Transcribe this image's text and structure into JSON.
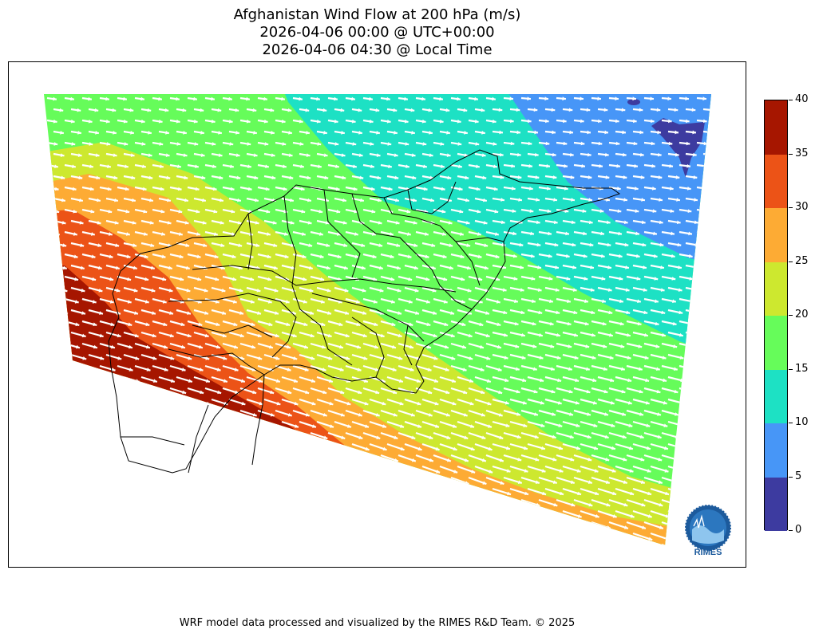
{
  "header": {
    "title_line1": "Afghanistan Wind Flow at 200 hPa (m/s)",
    "title_line2": "2026-04-06 00:00 @ UTC+00:00",
    "title_line3": "2026-04-06 04:30 @ Local Time"
  },
  "colorbar": {
    "levels": [
      0,
      5,
      10,
      15,
      20,
      25,
      30,
      35,
      40
    ],
    "labels": [
      "0",
      "5",
      "10",
      "15",
      "20",
      "25",
      "30",
      "35",
      "40"
    ],
    "colors": [
      "#3d3ba0",
      "#4796f7",
      "#1de1c4",
      "#66fc5a",
      "#cde82f",
      "#fdab34",
      "#ec5317",
      "#a61600"
    ]
  },
  "map": {
    "field": "wind speed (m/s)",
    "vectors": "white wind arrows",
    "overlay": "Afghanistan province boundaries"
  },
  "logo": {
    "name": "RIMES",
    "icon": "rimes-logo-icon"
  },
  "footer": {
    "credit": "WRF model data processed and visualized by the RIMES R&D Team. © 2025"
  }
}
